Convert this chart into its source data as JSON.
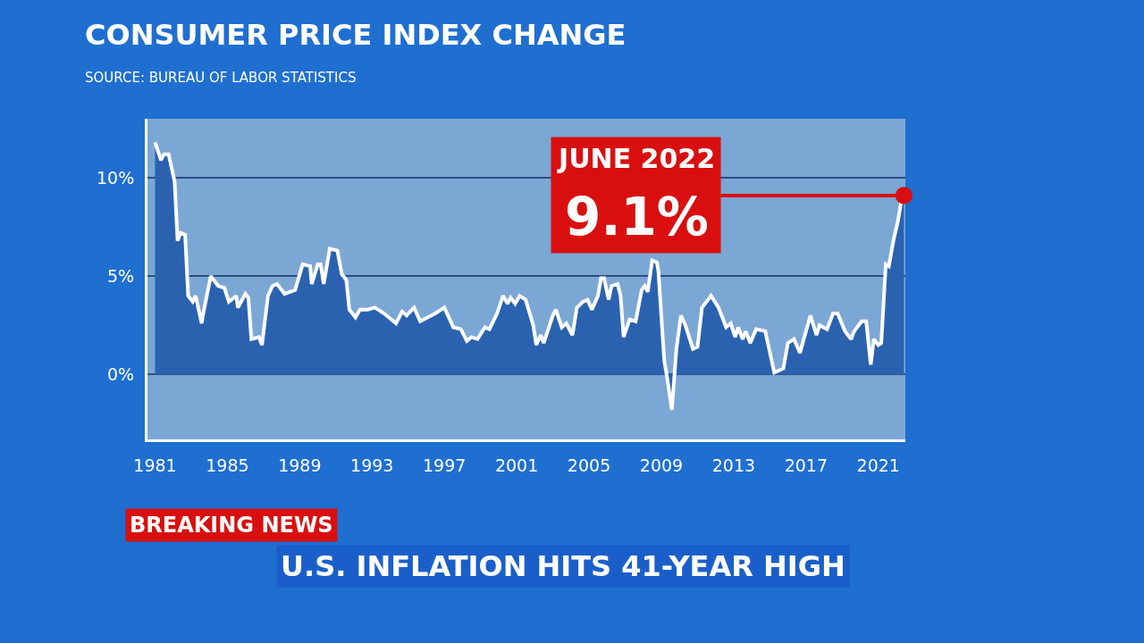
{
  "chart_data": {
    "type": "area",
    "title": "CONSUMER PRICE INDEX CHANGE",
    "subtitle": "SOURCE: BUREAU OF LABOR STATISTICS",
    "x": [
      "1981-01",
      "1981-05",
      "1981-07",
      "1981-10",
      "1982-02",
      "1982-04",
      "1982-06",
      "1982-09",
      "1982-11",
      "1983-02",
      "1983-04",
      "1983-08",
      "1983-09",
      "1984-02",
      "1984-07",
      "1984-11",
      "1985-02",
      "1985-07",
      "1985-08",
      "1986-01",
      "1986-03",
      "1986-05",
      "1986-10",
      "1986-12",
      "1987-04",
      "1987-07",
      "1987-10",
      "1988-03",
      "1988-10",
      "1989-03",
      "1989-08",
      "1989-09",
      "1990-01",
      "1990-03",
      "1990-05",
      "1990-09",
      "1991-02",
      "1991-05",
      "1991-08",
      "1991-10",
      "1992-02",
      "1992-05",
      "1992-10",
      "1993-03",
      "1993-09",
      "1994-05",
      "1994-09",
      "1994-12",
      "1995-05",
      "1995-09",
      "1996-07",
      "1997-01",
      "1997-07",
      "1997-12",
      "1998-04",
      "1998-07",
      "1998-11",
      "1999-04",
      "1999-07",
      "1999-12",
      "2000-04",
      "2000-07",
      "2000-09",
      "2000-12",
      "2001-03",
      "2001-07",
      "2001-12",
      "2002-02",
      "2002-05",
      "2002-07",
      "2003-01",
      "2003-03",
      "2003-07",
      "2003-10",
      "2004-02",
      "2004-05",
      "2004-09",
      "2004-12",
      "2005-03",
      "2005-07",
      "2005-09",
      "2005-11",
      "2006-02",
      "2006-04",
      "2006-08",
      "2006-10",
      "2006-12",
      "2007-04",
      "2007-08",
      "2007-12",
      "2008-02",
      "2008-04",
      "2008-07",
      "2008-10",
      "2008-11",
      "2009-03",
      "2009-05",
      "2009-08",
      "2009-11",
      "2010-02",
      "2010-05",
      "2010-10",
      "2011-01",
      "2011-04",
      "2011-10",
      "2012-03",
      "2012-08",
      "2012-11",
      "2013-02",
      "2013-04",
      "2013-07",
      "2013-09",
      "2013-12",
      "2014-04",
      "2014-10",
      "2015-04",
      "2015-07",
      "2015-10",
      "2016-01",
      "2016-05",
      "2016-09",
      "2017-01",
      "2017-04",
      "2017-08",
      "2017-10",
      "2018-03",
      "2018-07",
      "2018-10",
      "2019-03",
      "2019-07",
      "2019-09",
      "2020-02",
      "2020-05",
      "2020-08",
      "2020-10",
      "2021-01",
      "2021-03",
      "2021-06",
      "2021-08",
      "2021-11",
      "2022-02",
      "2022-04",
      "2022-06"
    ],
    "series": [
      {
        "color": "#2a62b0",
        "values": [
          11.8,
          10.9,
          11.2,
          11.2,
          9.8,
          6.8,
          7.2,
          7.1,
          4.0,
          3.7,
          4.0,
          2.6,
          3.1,
          5.0,
          4.5,
          4.4,
          3.7,
          4.0,
          3.4,
          4.1,
          3.9,
          1.8,
          1.9,
          1.5,
          4.0,
          4.5,
          4.6,
          4.1,
          4.3,
          5.6,
          5.5,
          4.6,
          5.6,
          5.6,
          4.6,
          6.4,
          6.3,
          5.1,
          4.8,
          3.3,
          2.9,
          3.3,
          3.3,
          3.4,
          3.1,
          2.6,
          3.2,
          3.0,
          3.4,
          2.7,
          3.1,
          3.4,
          2.4,
          2.3,
          1.7,
          1.9,
          1.8,
          2.4,
          2.3,
          3.1,
          4.0,
          3.6,
          3.9,
          3.6,
          4.0,
          3.8,
          2.5,
          1.5,
          2.0,
          1.6,
          3.0,
          3.3,
          2.4,
          2.6,
          2.0,
          3.4,
          3.7,
          3.8,
          3.3,
          4.0,
          4.9,
          4.9,
          3.8,
          4.5,
          4.6,
          4.0,
          1.9,
          2.8,
          2.7,
          4.3,
          4.5,
          4.2,
          5.8,
          5.7,
          5.3,
          0.7,
          -0.2,
          -1.8,
          1.3,
          3.0,
          2.5,
          1.3,
          1.4,
          3.4,
          4.0,
          3.4,
          2.4,
          2.6,
          1.9,
          2.4,
          1.8,
          2.2,
          1.6,
          2.3,
          2.2,
          0.1,
          0.2,
          0.3,
          1.6,
          1.8,
          1.1,
          2.2,
          3.0,
          2.0,
          2.5,
          2.3,
          3.1,
          3.1,
          2.2,
          1.8,
          2.2,
          2.7,
          2.7,
          0.5,
          1.8,
          1.5,
          1.6,
          5.6,
          5.5,
          6.8,
          7.8,
          8.7,
          9.1
        ]
      }
    ],
    "xlim": [
      "1980-08",
      "2022-07"
    ],
    "xticks": [
      {
        "value": "1981",
        "label": "1981"
      },
      {
        "value": "1985",
        "label": "1985"
      },
      {
        "value": "1989",
        "label": "1989"
      },
      {
        "value": "1993",
        "label": "1993"
      },
      {
        "value": "1997",
        "label": "1997"
      },
      {
        "value": "2001",
        "label": "2001"
      },
      {
        "value": "2005",
        "label": "2005"
      },
      {
        "value": "2009",
        "label": "2009"
      },
      {
        "value": "2013",
        "label": "2013"
      },
      {
        "value": "2017",
        "label": "2017"
      },
      {
        "value": "2021",
        "label": "2021"
      }
    ],
    "ylim": [
      -3.3,
      13
    ],
    "yticks": [
      {
        "value": 0,
        "label": "0%"
      },
      {
        "value": 5,
        "label": "5%"
      },
      {
        "value": 10,
        "label": "10%"
      }
    ],
    "grid": "y",
    "annotations": [
      {
        "text": "JUNE 2022\n9.1%",
        "x": "2022-06",
        "y": 9.1
      },
      "BREAKING NEWS",
      "U.S. INFLATION HITS 41-YEAR HIGH"
    ]
  }
}
